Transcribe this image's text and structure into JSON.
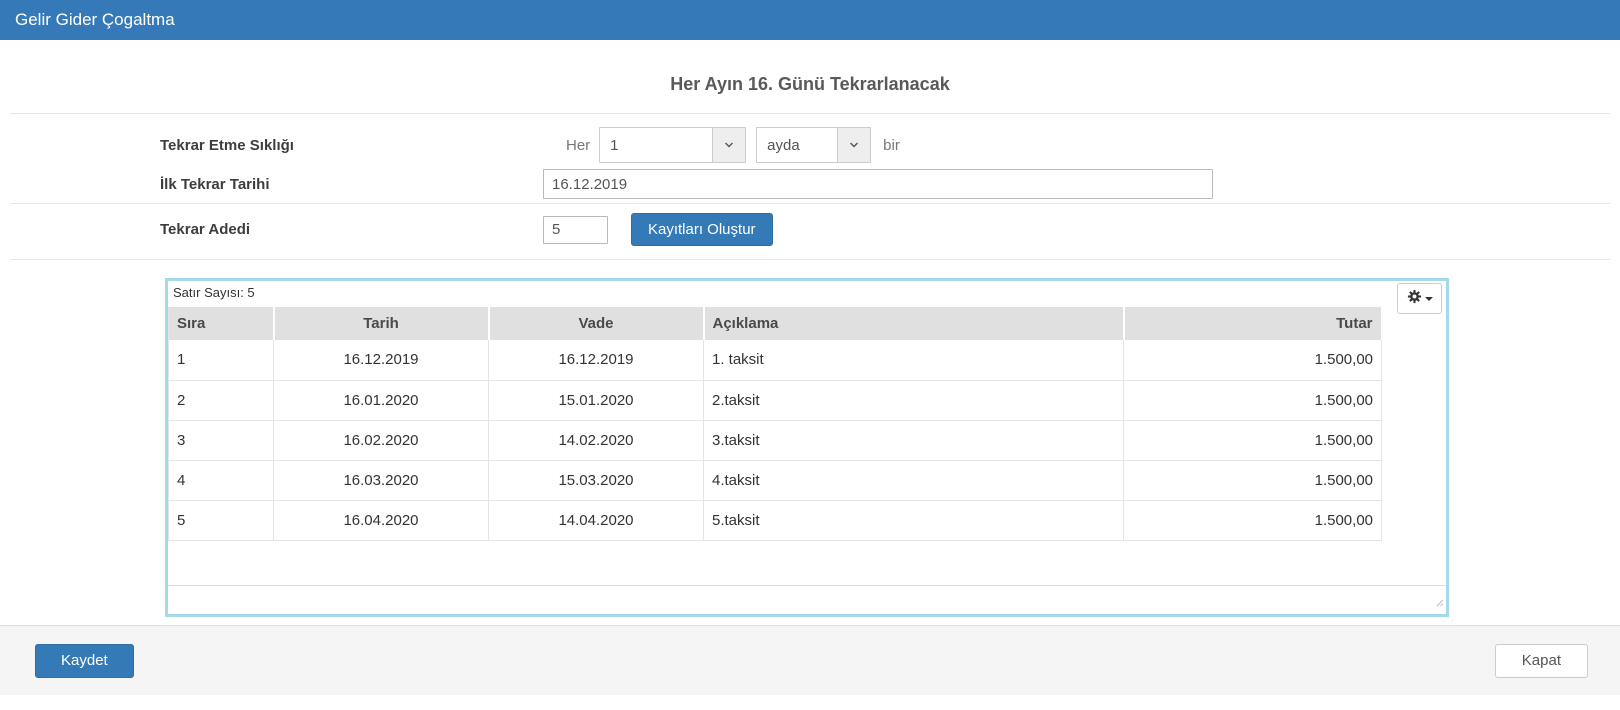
{
  "header": {
    "title": "Gelir Gider Çogaltma"
  },
  "page": {
    "title": "Her Ayın 16. Günü Tekrarlanacak"
  },
  "form": {
    "frequency": {
      "label": "Tekrar Etme Sıklığı",
      "prefix": "Her",
      "interval_value": "1",
      "unit_value": "ayda",
      "suffix": "bir"
    },
    "first_date": {
      "label": "İlk Tekrar Tarihi",
      "value": "16.12.2019"
    },
    "repeat_count": {
      "label": "Tekrar Adedi",
      "value": "5",
      "button_label": "Kayıtları Oluştur"
    }
  },
  "grid": {
    "row_count_label": "Satır Sayısı: 5",
    "settings_icon": "gear-icon",
    "columns": [
      {
        "label": "Sıra",
        "align": "left"
      },
      {
        "label": "Tarih",
        "align": "center"
      },
      {
        "label": "Vade",
        "align": "center"
      },
      {
        "label": "Açıklama",
        "align": "left"
      },
      {
        "label": "Tutar",
        "align": "right"
      }
    ],
    "rows": [
      [
        "1",
        "16.12.2019",
        "16.12.2019",
        "1. taksit",
        "1.500,00"
      ],
      [
        "2",
        "16.01.2020",
        "15.01.2020",
        "2.taksit",
        "1.500,00"
      ],
      [
        "3",
        "16.02.2020",
        "14.02.2020",
        "3.taksit",
        "1.500,00"
      ],
      [
        "4",
        "16.03.2020",
        "15.03.2020",
        "4.taksit",
        "1.500,00"
      ],
      [
        "5",
        "16.04.2020",
        "14.04.2020",
        "5.taksit",
        "1.500,00"
      ]
    ]
  },
  "footer": {
    "save_label": "Kaydet",
    "close_label": "Kapat"
  },
  "colors": {
    "header_bg": "#3679b8",
    "primary_button": "#337ab7",
    "grid_border": "#a3d9e8",
    "table_header_bg": "#e0e0e0",
    "footer_bg": "#f5f5f5"
  }
}
